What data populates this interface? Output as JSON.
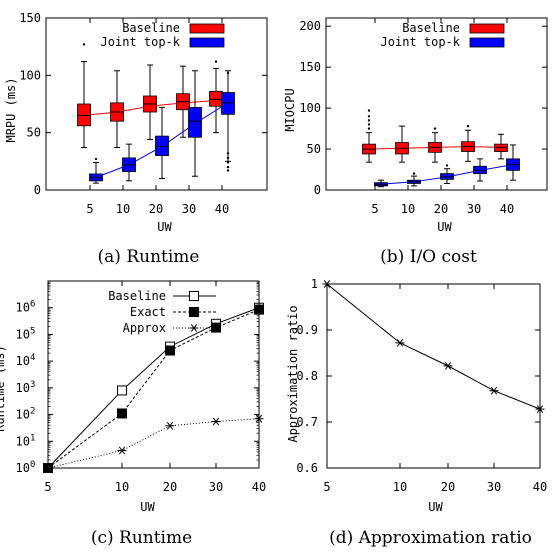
{
  "chart_data": [
    {
      "id": "a",
      "type": "boxplot",
      "caption": "(a) Runtime",
      "xlabel": "UW",
      "ylabel": "MRPU (ms)",
      "categories": [
        "5",
        "10",
        "20",
        "30",
        "40"
      ],
      "ylim": [
        0,
        150
      ],
      "yticks": [
        0,
        50,
        100,
        150
      ],
      "legend_position": "top",
      "series": [
        {
          "name": "Baseline",
          "color": "#ff0000",
          "line_color": "#ff0000",
          "boxes": [
            {
              "min": 37,
              "q1": 56,
              "median": 65,
              "q3": 75,
              "max": 112,
              "outliers": [
                127
              ]
            },
            {
              "min": 37,
              "q1": 60,
              "median": 68,
              "q3": 76,
              "max": 104,
              "outliers": []
            },
            {
              "min": 44,
              "q1": 68,
              "median": 75,
              "q3": 82,
              "max": 109,
              "outliers": []
            },
            {
              "min": 46,
              "q1": 70,
              "median": 77,
              "q3": 84,
              "max": 108,
              "outliers": []
            },
            {
              "min": 50,
              "q1": 73,
              "median": 79,
              "q3": 86,
              "max": 106,
              "outliers": [
                112
              ]
            }
          ],
          "trend": [
            65,
            68,
            73,
            76,
            78
          ]
        },
        {
          "name": "Joint top-k",
          "color": "#0000ff",
          "line_color": "#0000ff",
          "boxes": [
            {
              "min": 6,
              "q1": 8,
              "median": 11,
              "q3": 14,
              "max": 24,
              "outliers": [
                27
              ]
            },
            {
              "min": 8,
              "q1": 16,
              "median": 22,
              "q3": 28,
              "max": 40,
              "outliers": []
            },
            {
              "min": 10,
              "q1": 30,
              "median": 38,
              "q3": 47,
              "max": 72,
              "outliers": []
            },
            {
              "min": 12,
              "q1": 46,
              "median": 60,
              "q3": 72,
              "max": 104,
              "outliers": []
            },
            {
              "min": 25,
              "q1": 66,
              "median": 76,
              "q3": 85,
              "max": 104,
              "outliers": [
                32,
                28,
                24,
                20,
                17,
                102
              ]
            }
          ],
          "trend": [
            11,
            22,
            38,
            58,
            76
          ]
        }
      ]
    },
    {
      "id": "b",
      "type": "boxplot",
      "caption": "(b) I/O cost",
      "xlabel": "UW",
      "ylabel": "MIOCPU",
      "categories": [
        "5",
        "10",
        "20",
        "30",
        "40"
      ],
      "ylim": [
        0,
        210
      ],
      "yticks": [
        0,
        50,
        100,
        150,
        200
      ],
      "legend_position": "top",
      "series": [
        {
          "name": "Baseline",
          "color": "#ff0000",
          "line_color": "#ff0000",
          "boxes": [
            {
              "min": 34,
              "q1": 44,
              "median": 50,
              "q3": 56,
              "max": 70,
              "outliers": [
                75,
                80,
                85,
                90,
                97
              ]
            },
            {
              "min": 34,
              "q1": 44,
              "median": 51,
              "q3": 58,
              "max": 78,
              "outliers": []
            },
            {
              "min": 34,
              "q1": 46,
              "median": 52,
              "q3": 58,
              "max": 70,
              "outliers": [
                75
              ]
            },
            {
              "min": 35,
              "q1": 47,
              "median": 53,
              "q3": 59,
              "max": 73,
              "outliers": [
                78
              ]
            },
            {
              "min": 38,
              "q1": 47,
              "median": 52,
              "q3": 56,
              "max": 68,
              "outliers": []
            }
          ],
          "trend": [
            50,
            51,
            52,
            53,
            52
          ]
        },
        {
          "name": "Joint top-k",
          "color": "#0000ff",
          "line_color": "#0000ff",
          "boxes": [
            {
              "min": 4,
              "q1": 5,
              "median": 7,
              "q3": 9,
              "max": 12,
              "outliers": []
            },
            {
              "min": 5,
              "q1": 8,
              "median": 10,
              "q3": 12,
              "max": 17,
              "outliers": [
                20
              ]
            },
            {
              "min": 8,
              "q1": 13,
              "median": 16,
              "q3": 20,
              "max": 26,
              "outliers": [
                30
              ]
            },
            {
              "min": 11,
              "q1": 20,
              "median": 24,
              "q3": 29,
              "max": 38,
              "outliers": []
            },
            {
              "min": 12,
              "q1": 24,
              "median": 31,
              "q3": 38,
              "max": 55,
              "outliers": []
            }
          ],
          "trend": [
            7,
            10,
            16,
            24,
            31
          ]
        }
      ]
    },
    {
      "id": "c",
      "type": "line",
      "caption": "(c) Runtime",
      "xlabel": "UW",
      "ylabel": "Runtime (ms)",
      "categories": [
        "5",
        "10",
        "20",
        "30",
        "40"
      ],
      "y_scale": "log",
      "ylim": [
        1,
        10000000
      ],
      "ytick_labels": [
        {
          "base": "10",
          "exp": "0"
        },
        {
          "base": "10",
          "exp": "1"
        },
        {
          "base": "10",
          "exp": "2"
        },
        {
          "base": "10",
          "exp": "3"
        },
        {
          "base": "10",
          "exp": "4"
        },
        {
          "base": "10",
          "exp": "5"
        },
        {
          "base": "10",
          "exp": "6"
        }
      ],
      "legend_position": "top-left",
      "series": [
        {
          "name": "Baseline",
          "marker": "open-square",
          "dash": "solid",
          "values": [
            1,
            800,
            35000,
            250000,
            1000000
          ]
        },
        {
          "name": "Exact",
          "marker": "filled-square",
          "dash": "dashed",
          "values": [
            1,
            110,
            25000,
            180000,
            850000
          ]
        },
        {
          "name": "Approx",
          "marker": "asterisk",
          "dash": "dotted",
          "values": [
            1,
            4.5,
            38,
            55,
            70
          ]
        }
      ]
    },
    {
      "id": "d",
      "type": "line",
      "caption": "(d) Approximation ratio",
      "xlabel": "UW",
      "ylabel": "Approximation ratio",
      "categories": [
        "5",
        "10",
        "20",
        "30",
        "40"
      ],
      "ylim": [
        0.6,
        1.0
      ],
      "yticks": [
        "0.6",
        "0.7",
        "0.8",
        "0.9",
        "1"
      ],
      "series": [
        {
          "marker": "asterisk",
          "dash": "solid",
          "values": [
            1.0,
            0.872,
            0.822,
            0.768,
            0.728
          ]
        }
      ]
    }
  ]
}
